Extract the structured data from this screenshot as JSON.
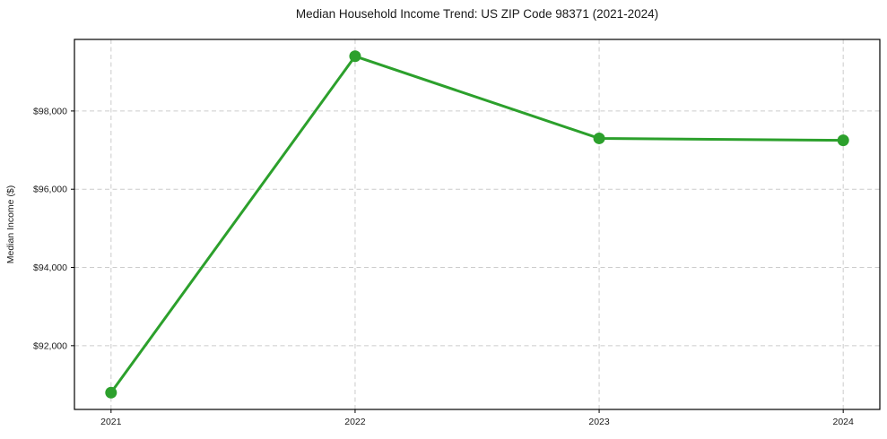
{
  "chart_data": {
    "type": "line",
    "title": "Median Household Income Trend: US ZIP Code 98371 (2021-2024)",
    "xlabel": "",
    "ylabel": "Median Income ($)",
    "x": [
      2021,
      2022,
      2023,
      2024
    ],
    "xtick_labels": [
      "2021",
      "2022",
      "2023",
      "2024"
    ],
    "values": [
      90800,
      99400,
      97300,
      97250
    ],
    "yticks": [
      92000,
      94000,
      96000,
      98000
    ],
    "ytick_labels": [
      "$92,000",
      "$94,000",
      "$96,000",
      "$98,000"
    ],
    "xlim": [
      2020.85,
      2024.15
    ],
    "ylim": [
      90370,
      99830
    ],
    "grid": true,
    "grid_style": "dashed",
    "legend": "none",
    "line_color": "#2ca02c",
    "marker": "circle",
    "background_color": "#ffffff",
    "grid_color": "#cccccc",
    "axis_color": "#000000",
    "text_color": "#1a1a1a"
  }
}
